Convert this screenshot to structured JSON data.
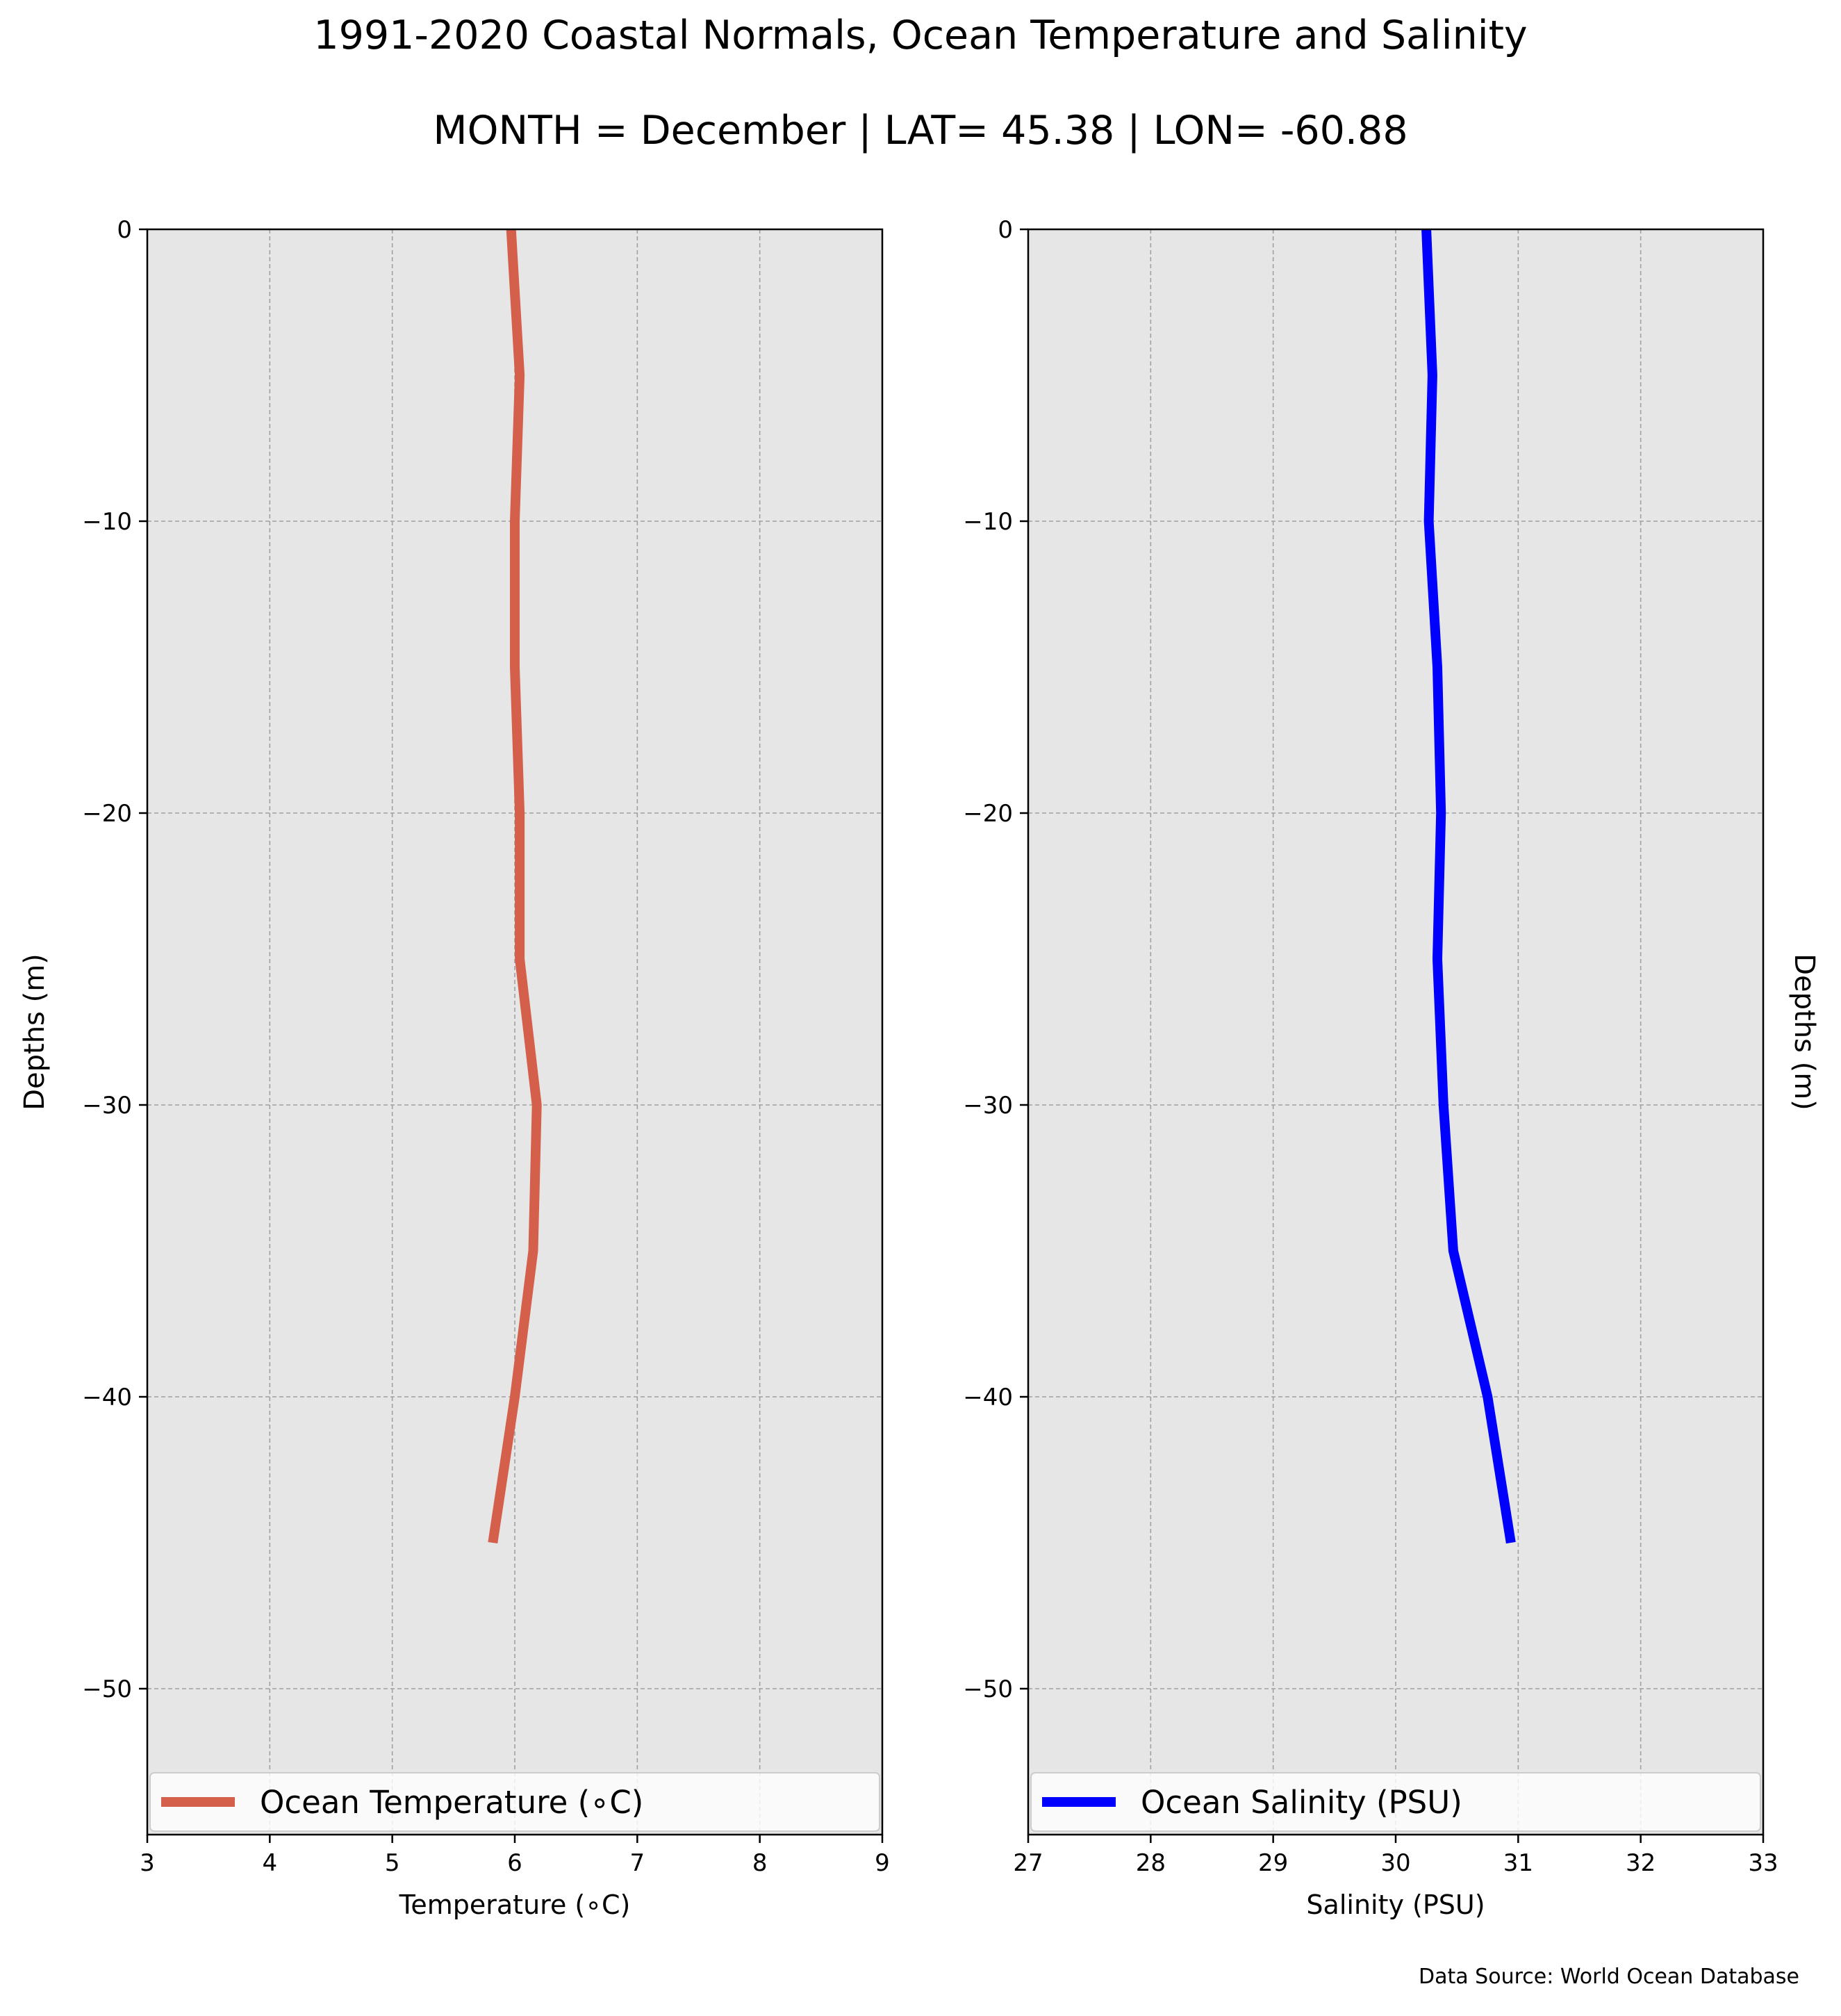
{
  "title": "1991-2020 Coastal Normals, Ocean Temperature and Salinity",
  "subtitle": "MONTH = December | LAT= 45.38 | LON= -60.88",
  "source_note": "Data Source: World Ocean Database",
  "chart_data": [
    {
      "type": "line",
      "orientation": "vertical-profile",
      "xlabel": "Temperature (∘C)",
      "ylabel": "Depths (m)",
      "ylabel_side": "left",
      "xlim": [
        3,
        9
      ],
      "ylim": [
        -55,
        0
      ],
      "xticks": [
        3,
        4,
        5,
        6,
        7,
        8,
        9
      ],
      "yticks": [
        0,
        -10,
        -20,
        -30,
        -40,
        -50
      ],
      "ytick_labels": [
        "0",
        "−10",
        "−20",
        "−30",
        "−40",
        "−50"
      ],
      "grid": true,
      "background": "#e6e6e6",
      "legend_position": "lower-center",
      "series": [
        {
          "name": "Ocean Temperature (∘C)",
          "color": "#d45f4b",
          "x": [
            5.97,
            6.04,
            6.0,
            6.0,
            6.04,
            6.04,
            6.18,
            6.15,
            6.0,
            5.82
          ],
          "y": [
            0,
            -5,
            -10,
            -15,
            -20,
            -25,
            -30,
            -35,
            -40,
            -45
          ]
        }
      ]
    },
    {
      "type": "line",
      "orientation": "vertical-profile",
      "xlabel": "Salinity (PSU)",
      "ylabel": "Depths (m)",
      "ylabel_side": "right",
      "xlim": [
        27,
        33
      ],
      "ylim": [
        -55,
        0
      ],
      "xticks": [
        27,
        28,
        29,
        30,
        31,
        32,
        33
      ],
      "yticks": [
        0,
        -10,
        -20,
        -30,
        -40,
        -50
      ],
      "ytick_labels": [
        "0",
        "−10",
        "−20",
        "−30",
        "−40",
        "−50"
      ],
      "grid": true,
      "background": "#e6e6e6",
      "legend_position": "lower-center",
      "series": [
        {
          "name": "Ocean Salinity (PSU)",
          "color": "#0000ff",
          "x": [
            30.25,
            30.3,
            30.27,
            30.34,
            30.37,
            30.34,
            30.39,
            30.47,
            30.75,
            30.94
          ],
          "y": [
            0,
            -5,
            -10,
            -15,
            -20,
            -25,
            -30,
            -35,
            -40,
            -45
          ]
        }
      ]
    }
  ]
}
